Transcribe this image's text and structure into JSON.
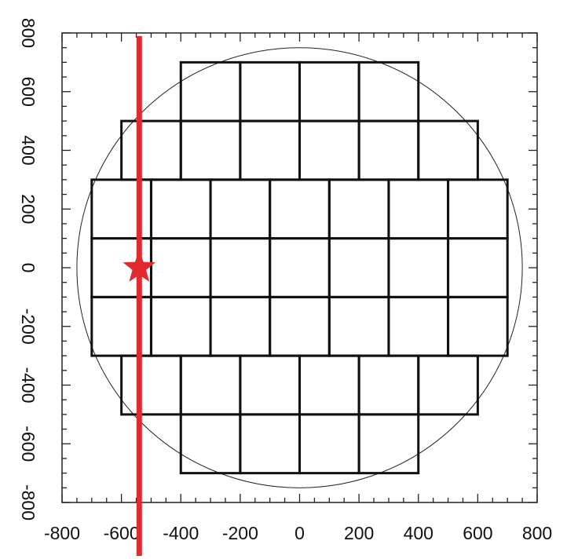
{
  "chart_data": {
    "type": "scatter",
    "xlim": [
      -800,
      800
    ],
    "ylim": [
      -800,
      800
    ],
    "x_ticks": [
      -800,
      -600,
      -400,
      -200,
      0,
      200,
      400,
      600,
      800
    ],
    "y_ticks": [
      -800,
      -600,
      -400,
      -200,
      0,
      200,
      400,
      600,
      800
    ],
    "x_tick_labels": [
      "-800",
      "-600",
      "-400",
      "-200",
      "0",
      "200",
      "400",
      "600",
      "800"
    ],
    "y_tick_labels": [
      "-800",
      "-600",
      "-400",
      "-200",
      "0",
      "200",
      "400",
      "600",
      "800"
    ],
    "minor_tick_step": 50,
    "circle": {
      "center": [
        0,
        0
      ],
      "radius": 750
    },
    "grid_rows": [
      {
        "y_min": 500,
        "y_max": 700,
        "x_edges": [
          -400,
          -200,
          0,
          200,
          400
        ]
      },
      {
        "y_min": 300,
        "y_max": 500,
        "x_edges": [
          -600,
          -400,
          -200,
          0,
          200,
          400,
          600
        ]
      },
      {
        "y_min": 100,
        "y_max": 300,
        "x_edges": [
          -700,
          -500,
          -300,
          -100,
          100,
          300,
          500,
          700
        ]
      },
      {
        "y_min": -100,
        "y_max": 100,
        "x_edges": [
          -700,
          -500,
          -300,
          -100,
          100,
          300,
          500,
          700
        ]
      },
      {
        "y_min": -300,
        "y_max": -100,
        "x_edges": [
          -700,
          -500,
          -300,
          -100,
          100,
          300,
          500,
          700
        ]
      },
      {
        "y_min": -500,
        "y_max": -300,
        "x_edges": [
          -600,
          -400,
          -200,
          0,
          200,
          400,
          600
        ]
      },
      {
        "y_min": -700,
        "y_max": -500,
        "x_edges": [
          -400,
          -200,
          0,
          200,
          400
        ]
      }
    ],
    "vertical_line": {
      "x": -540,
      "color": "#e02a2f"
    },
    "marker": {
      "x": -540,
      "y": 0,
      "shape": "star",
      "color": "#e02a2f"
    },
    "grid": false,
    "legend": "none"
  }
}
